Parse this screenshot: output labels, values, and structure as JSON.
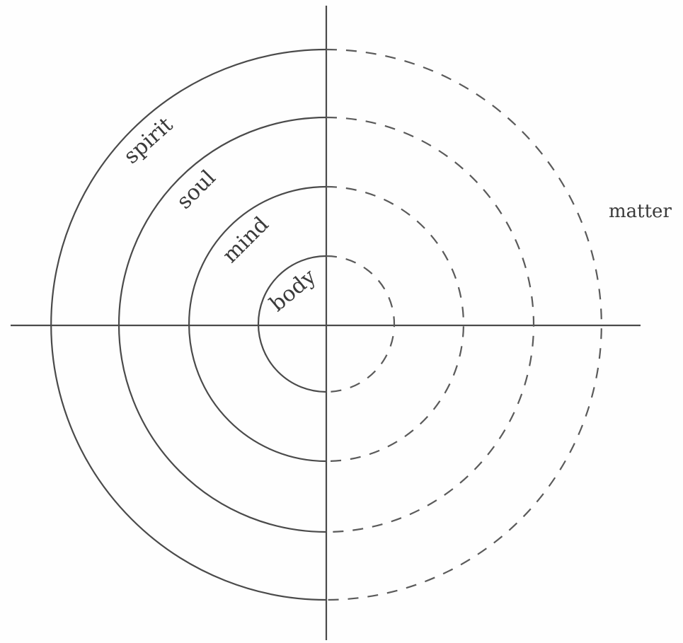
{
  "diagram": {
    "ring_labels": [
      "body",
      "mind",
      "soul",
      "spirit"
    ],
    "side_label": "matter",
    "line_color": "#4a4a4a",
    "text_color": "#3a3a3a"
  }
}
